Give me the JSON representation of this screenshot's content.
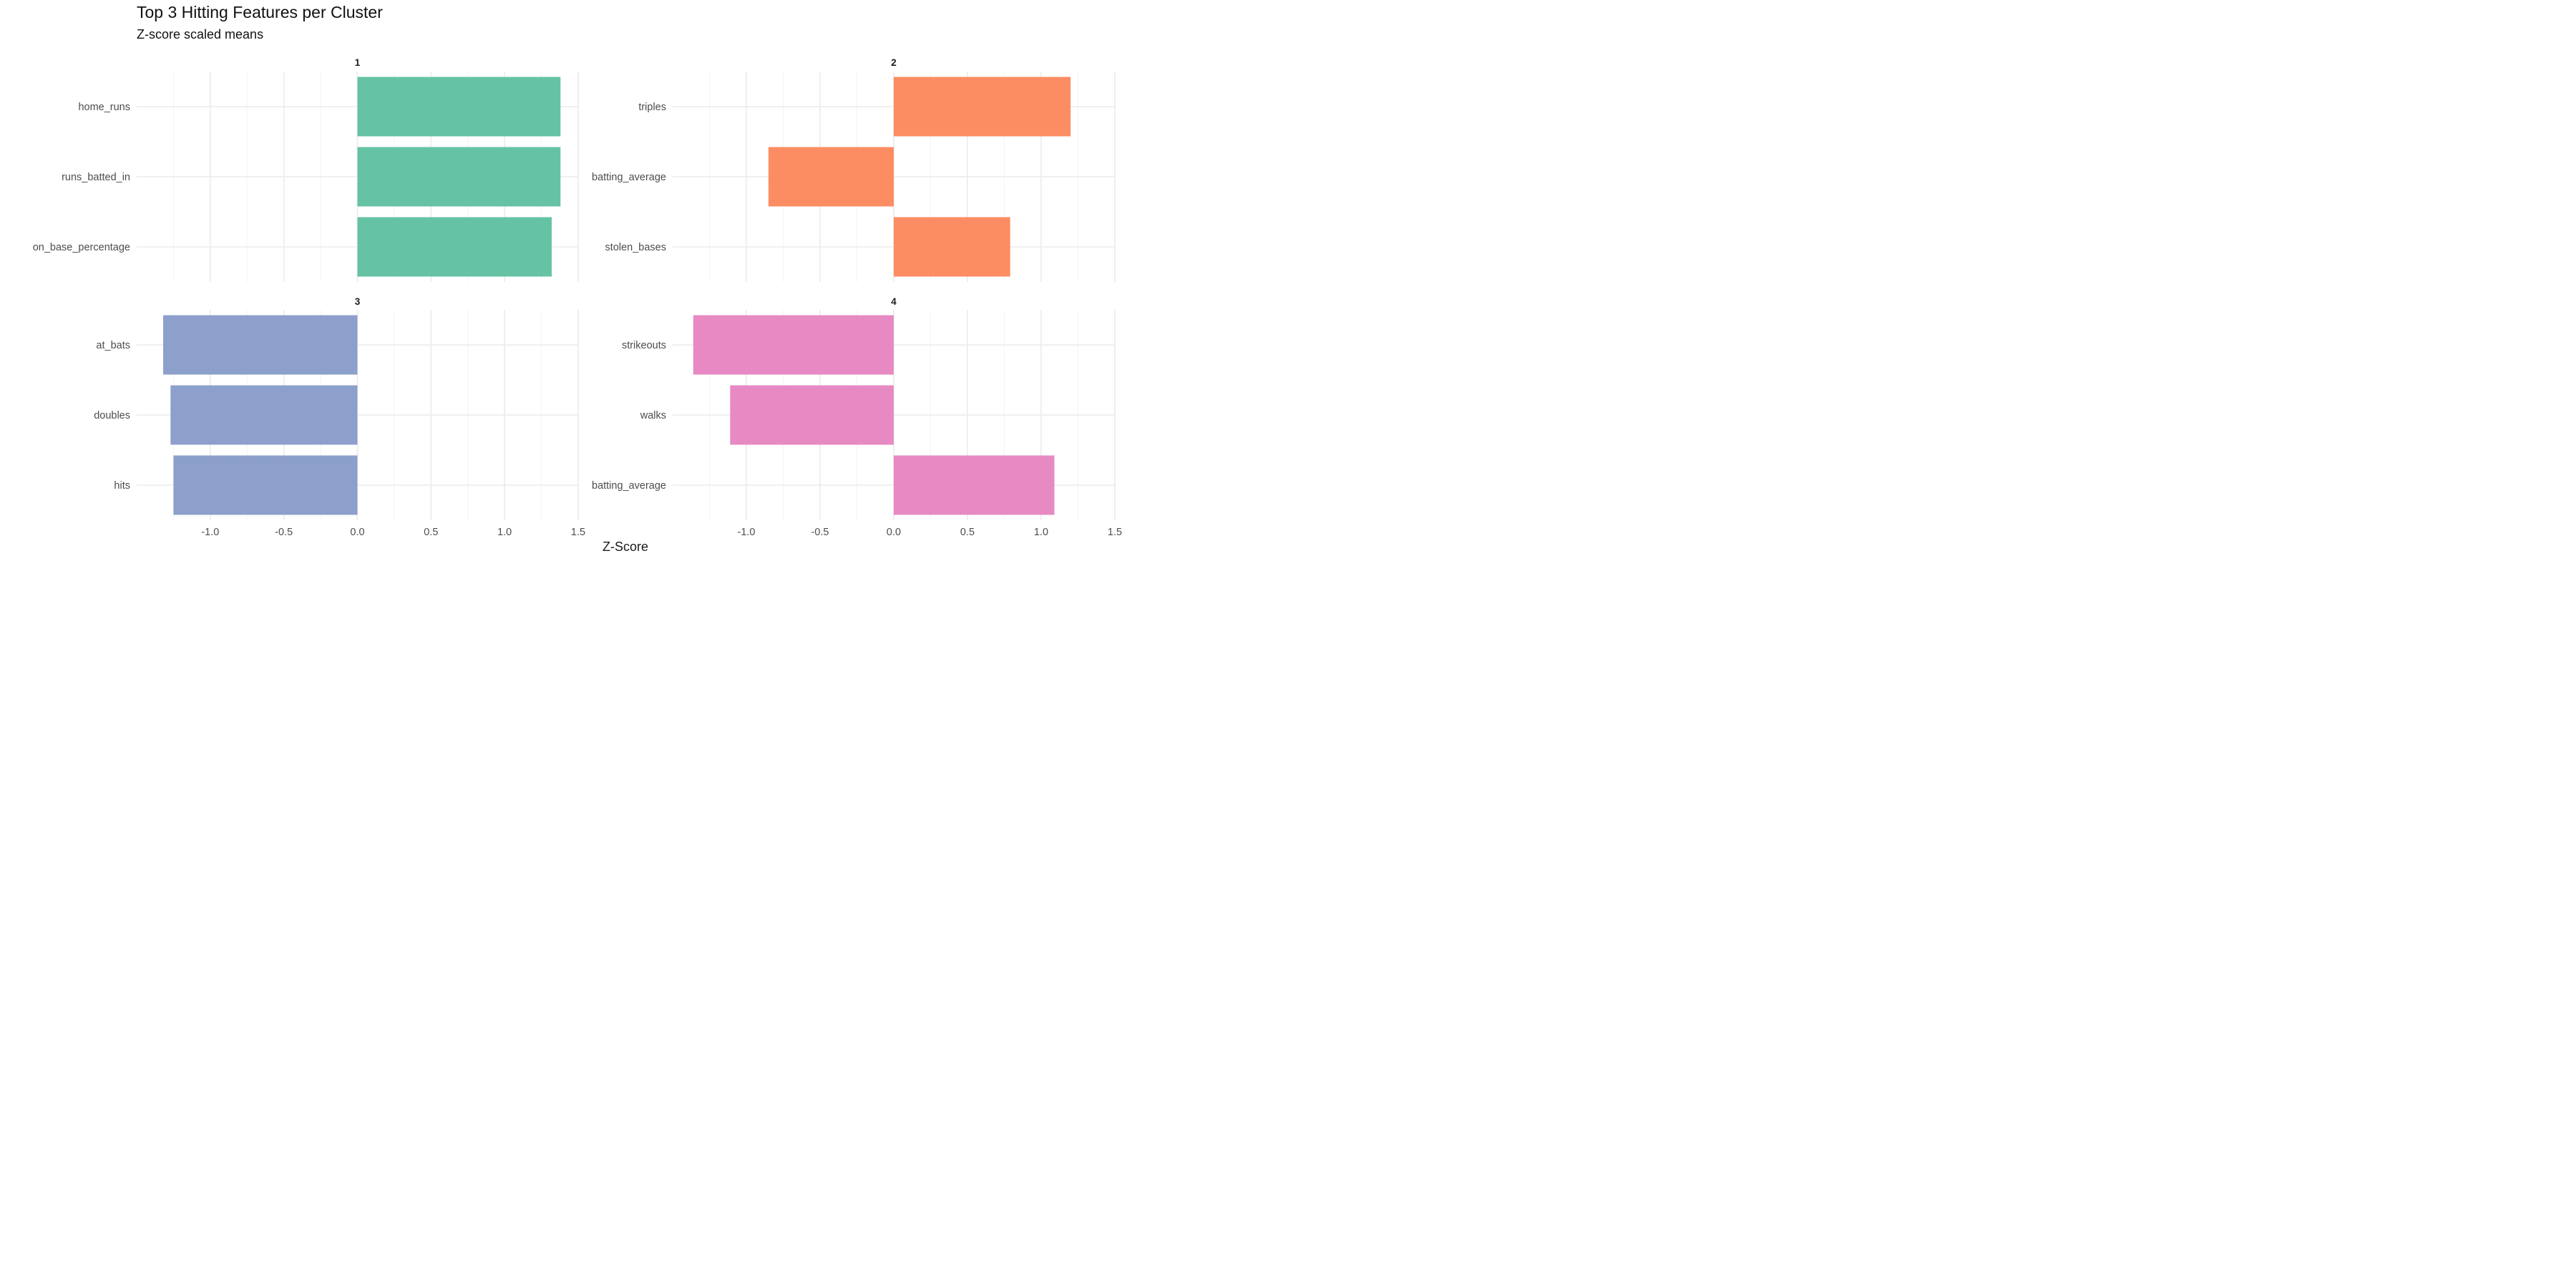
{
  "chart_data": {
    "type": "bar",
    "orientation": "horizontal",
    "layout": "facet_wrap 2x2",
    "title": "Top 3 Hitting Features per Cluster",
    "subtitle": "Z-score scaled means",
    "xlabel": "Z-Score",
    "ylabel": "",
    "xlim": [
      -1.5,
      1.5
    ],
    "x_ticks": [
      -1.0,
      -0.5,
      0.0,
      0.5,
      1.0,
      1.5
    ],
    "x_tick_labels": [
      "-1.0",
      "-0.5",
      "0.0",
      "0.5",
      "1.0",
      "1.5"
    ],
    "grid": true,
    "legend": "none",
    "panels": [
      {
        "label": "1",
        "color": "#66C2A5",
        "categories": [
          "home_runs",
          "runs_batted_in",
          "on_base_percentage"
        ],
        "values": [
          1.38,
          1.38,
          1.32
        ]
      },
      {
        "label": "2",
        "color": "#FC8D62",
        "categories": [
          "triples",
          "batting_average",
          "stolen_bases"
        ],
        "values": [
          1.2,
          -0.85,
          0.79
        ]
      },
      {
        "label": "3",
        "color": "#8DA0CB",
        "categories": [
          "at_bats",
          "doubles",
          "hits"
        ],
        "values": [
          -1.32,
          -1.27,
          -1.25
        ]
      },
      {
        "label": "4",
        "color": "#E78AC3",
        "categories": [
          "strikeouts",
          "walks",
          "batting_average"
        ],
        "values": [
          -1.36,
          -1.11,
          1.09
        ]
      }
    ]
  }
}
